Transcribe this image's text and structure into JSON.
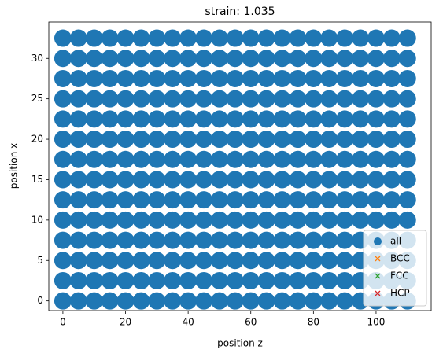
{
  "chart_data": {
    "type": "scatter",
    "title": "strain: 1.035",
    "xlabel": "position z",
    "ylabel": "position x",
    "xlim": [
      -4.5,
      117.6
    ],
    "ylim": [
      -1.2,
      34.5
    ],
    "xticks": [
      0,
      20,
      40,
      60,
      80,
      100
    ],
    "yticks": [
      0,
      5,
      10,
      15,
      20,
      25,
      30
    ],
    "legend": "lower right",
    "series": [
      {
        "name": "all",
        "color": "#1f77b4",
        "marker": "o",
        "x": [
          0,
          5,
          10,
          15,
          20,
          25,
          30,
          35,
          40,
          45,
          50,
          55,
          60,
          65,
          70,
          75,
          80,
          85,
          90,
          95,
          100,
          105,
          110,
          0,
          5,
          10,
          15,
          20,
          25,
          30,
          35,
          40,
          45,
          50,
          55,
          60,
          65,
          70,
          75,
          80,
          85,
          90,
          95,
          100,
          105,
          110,
          0,
          5,
          10,
          15,
          20,
          25,
          30,
          35,
          40,
          45,
          50,
          55,
          60,
          65,
          70,
          75,
          80,
          85,
          90,
          95,
          100,
          105,
          110,
          0,
          5,
          10,
          15,
          20,
          25,
          30,
          35,
          40,
          45,
          50,
          55,
          60,
          65,
          70,
          75,
          80,
          85,
          90,
          95,
          100,
          105,
          110,
          0,
          5,
          10,
          15,
          20,
          25,
          30,
          35,
          40,
          45,
          50,
          55,
          60,
          65,
          70,
          75,
          80,
          85,
          90,
          95,
          100,
          105,
          110,
          0,
          5,
          10,
          15,
          20,
          25,
          30,
          35,
          40,
          45,
          50,
          55,
          60,
          65,
          70,
          75,
          80,
          85,
          90,
          95,
          100,
          105,
          110,
          0,
          5,
          10,
          15,
          20,
          25,
          30,
          35,
          40,
          45,
          50,
          55,
          60,
          65,
          70,
          75,
          80,
          85,
          90,
          95,
          100,
          105,
          110,
          0,
          5,
          10,
          15,
          20,
          25,
          30,
          35,
          40,
          45,
          50,
          55,
          60,
          65,
          70,
          75,
          80,
          85,
          90,
          95,
          100,
          105,
          110,
          0,
          5,
          10,
          15,
          20,
          25,
          30,
          35,
          40,
          45,
          50,
          55,
          60,
          65,
          70,
          75,
          80,
          85,
          90,
          95,
          100,
          105,
          110,
          0,
          5,
          10,
          15,
          20,
          25,
          30,
          35,
          40,
          45,
          50,
          55,
          60,
          65,
          70,
          75,
          80,
          85,
          90,
          95,
          100,
          105,
          110,
          0,
          5,
          10,
          15,
          20,
          25,
          30,
          35,
          40,
          45,
          50,
          55,
          60,
          65,
          70,
          75,
          80,
          85,
          90,
          95,
          100,
          105,
          110,
          0,
          5,
          10,
          15,
          20,
          25,
          30,
          35,
          40,
          45,
          50,
          55,
          60,
          65,
          70,
          75,
          80,
          85,
          90,
          95,
          100,
          105,
          110,
          0,
          5,
          10,
          15,
          20,
          25,
          30,
          35,
          40,
          45,
          50,
          55,
          60,
          65,
          70,
          75,
          80,
          85,
          90,
          95,
          100,
          105,
          110,
          0,
          5,
          10,
          15,
          20,
          25,
          30,
          35,
          40,
          45,
          50,
          55,
          60,
          65,
          70,
          75,
          80,
          85,
          90,
          95,
          100,
          105,
          110
        ],
        "y": [
          0,
          0,
          0,
          0,
          0,
          0,
          0,
          0,
          0,
          0,
          0,
          0,
          0,
          0,
          0,
          0,
          0,
          0,
          0,
          0,
          0,
          0,
          0,
          2.5,
          2.5,
          2.5,
          2.5,
          2.5,
          2.5,
          2.5,
          2.5,
          2.5,
          2.5,
          2.5,
          2.5,
          2.5,
          2.5,
          2.5,
          2.5,
          2.5,
          2.5,
          2.5,
          2.5,
          2.5,
          2.5,
          2.5,
          5,
          5,
          5,
          5,
          5,
          5,
          5,
          5,
          5,
          5,
          5,
          5,
          5,
          5,
          5,
          5,
          5,
          5,
          5,
          5,
          5,
          5,
          5,
          7.5,
          7.5,
          7.5,
          7.5,
          7.5,
          7.5,
          7.5,
          7.5,
          7.5,
          7.5,
          7.5,
          7.5,
          7.5,
          7.5,
          7.5,
          7.5,
          7.5,
          7.5,
          7.5,
          7.5,
          7.5,
          7.5,
          7.5,
          10,
          10,
          10,
          10,
          10,
          10,
          10,
          10,
          10,
          10,
          10,
          10,
          10,
          10,
          10,
          10,
          10,
          10,
          10,
          10,
          10,
          10,
          10,
          12.5,
          12.5,
          12.5,
          12.5,
          12.5,
          12.5,
          12.5,
          12.5,
          12.5,
          12.5,
          12.5,
          12.5,
          12.5,
          12.5,
          12.5,
          12.5,
          12.5,
          12.5,
          12.5,
          12.5,
          12.5,
          12.5,
          12.5,
          15,
          15,
          15,
          15,
          15,
          15,
          15,
          15,
          15,
          15,
          15,
          15,
          15,
          15,
          15,
          15,
          15,
          15,
          15,
          15,
          15,
          15,
          15,
          17.5,
          17.5,
          17.5,
          17.5,
          17.5,
          17.5,
          17.5,
          17.5,
          17.5,
          17.5,
          17.5,
          17.5,
          17.5,
          17.5,
          17.5,
          17.5,
          17.5,
          17.5,
          17.5,
          17.5,
          17.5,
          17.5,
          17.5,
          20,
          20,
          20,
          20,
          20,
          20,
          20,
          20,
          20,
          20,
          20,
          20,
          20,
          20,
          20,
          20,
          20,
          20,
          20,
          20,
          20,
          20,
          20,
          22.5,
          22.5,
          22.5,
          22.5,
          22.5,
          22.5,
          22.5,
          22.5,
          22.5,
          22.5,
          22.5,
          22.5,
          22.5,
          22.5,
          22.5,
          22.5,
          22.5,
          22.5,
          22.5,
          22.5,
          22.5,
          22.5,
          22.5,
          25,
          25,
          25,
          25,
          25,
          25,
          25,
          25,
          25,
          25,
          25,
          25,
          25,
          25,
          25,
          25,
          25,
          25,
          25,
          25,
          25,
          25,
          25,
          27.5,
          27.5,
          27.5,
          27.5,
          27.5,
          27.5,
          27.5,
          27.5,
          27.5,
          27.5,
          27.5,
          27.5,
          27.5,
          27.5,
          27.5,
          27.5,
          27.5,
          27.5,
          27.5,
          27.5,
          27.5,
          27.5,
          27.5,
          30,
          30,
          30,
          30,
          30,
          30,
          30,
          30,
          30,
          30,
          30,
          30,
          30,
          30,
          30,
          30,
          30,
          30,
          30,
          30,
          30,
          30,
          30,
          32.5,
          32.5,
          32.5,
          32.5,
          32.5,
          32.5,
          32.5,
          32.5,
          32.5,
          32.5,
          32.5,
          32.5,
          32.5,
          32.5,
          32.5,
          32.5,
          32.5,
          32.5,
          32.5,
          32.5,
          32.5,
          32.5,
          32.5
        ]
      },
      {
        "name": "BCC",
        "color": "#ff7f0e",
        "marker": "x",
        "x": [],
        "y": []
      },
      {
        "name": "FCC",
        "color": "#2ca02c",
        "marker": "x",
        "x": [],
        "y": []
      },
      {
        "name": "HCP",
        "color": "#d62728",
        "marker": "x",
        "x": [],
        "y": []
      }
    ]
  }
}
